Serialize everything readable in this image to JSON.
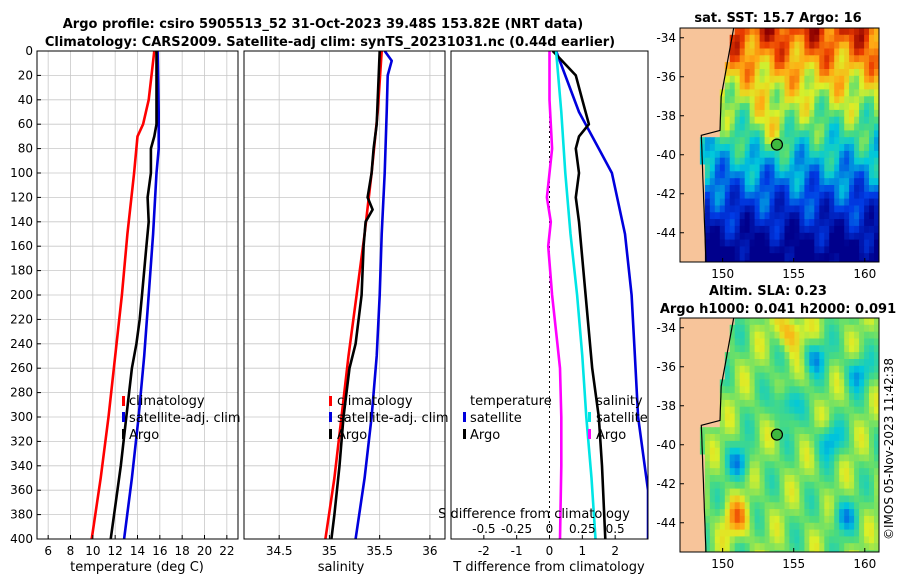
{
  "titles": {
    "line1": "Argo profile: csiro 5905513_52 31-Oct-2023 39.48S 153.82E (NRT data)",
    "line2": "Climatology: CARS2009. Satellite-adj clim: synTS_20231031.nc (0.44d earlier)"
  },
  "credit": "©IMOS 05-Nov-2023 11:42:38",
  "colors": {
    "climatology": "#ff0000",
    "satellite": "#0000dd",
    "argo": "#000000",
    "salinity_diff_sat": "#00e5e5",
    "salinity_diff_argo": "#ff00ff",
    "land": "#f7c49a"
  },
  "chart_data": [
    {
      "type": "line",
      "id": "temperature",
      "xlabel": "temperature (deg C)",
      "ylabel": "",
      "xlim": [
        5,
        23
      ],
      "ylim": [
        0,
        400
      ],
      "xticks": [
        6,
        8,
        10,
        12,
        14,
        16,
        18,
        20,
        22
      ],
      "yticks": [
        0,
        20,
        40,
        60,
        80,
        100,
        120,
        140,
        160,
        180,
        200,
        220,
        240,
        260,
        280,
        300,
        320,
        340,
        360,
        380,
        400
      ],
      "grid": true,
      "legend": [
        "climatology",
        "satellite-adj. clim",
        "Argo"
      ],
      "series": [
        {
          "name": "climatology",
          "color": "#ff0000",
          "depth": [
            0,
            40,
            60,
            70,
            100,
            150,
            200,
            250,
            300,
            350,
            400
          ],
          "values": [
            15.5,
            15.0,
            14.5,
            14.0,
            13.7,
            13.1,
            12.6,
            12.0,
            11.4,
            10.7,
            9.9
          ]
        },
        {
          "name": "satellite-adj. clim",
          "color": "#0000dd",
          "depth": [
            0,
            50,
            80,
            100,
            150,
            200,
            250,
            300,
            350,
            400
          ],
          "values": [
            15.8,
            15.9,
            15.9,
            15.7,
            15.4,
            15.0,
            14.6,
            14.1,
            13.5,
            12.8
          ]
        },
        {
          "name": "Argo",
          "color": "#000000",
          "depth": [
            0,
            60,
            70,
            80,
            100,
            120,
            140,
            160,
            180,
            200,
            220,
            240,
            260,
            300,
            340,
            380,
            400
          ],
          "values": [
            15.7,
            15.7,
            15.5,
            15.2,
            15.2,
            14.9,
            15.0,
            14.8,
            14.6,
            14.4,
            14.2,
            13.9,
            13.5,
            13.0,
            12.5,
            11.9,
            11.6
          ]
        }
      ]
    },
    {
      "type": "line",
      "id": "salinity",
      "xlabel": "salinity",
      "xlim": [
        34.15,
        36.15
      ],
      "ylim": [
        0,
        400
      ],
      "xticks": [
        34.5,
        35,
        35.5,
        36
      ],
      "grid": true,
      "legend": [
        "climatology",
        "satellite-adj. clim",
        "Argo"
      ],
      "series": [
        {
          "name": "climatology",
          "color": "#ff0000",
          "depth": [
            0,
            50,
            100,
            150,
            200,
            250,
            300,
            350,
            400
          ],
          "values": [
            35.52,
            35.48,
            35.42,
            35.35,
            35.27,
            35.19,
            35.12,
            35.05,
            34.96
          ]
        },
        {
          "name": "satellite-adj. clim",
          "color": "#0000dd",
          "depth": [
            0,
            8,
            20,
            50,
            100,
            150,
            200,
            250,
            300,
            350,
            400
          ],
          "values": [
            35.55,
            35.62,
            35.58,
            35.57,
            35.55,
            35.52,
            35.5,
            35.47,
            35.42,
            35.35,
            35.26
          ]
        },
        {
          "name": "Argo",
          "color": "#000000",
          "depth": [
            0,
            60,
            80,
            100,
            120,
            130,
            140,
            160,
            200,
            240,
            260,
            300,
            340,
            380,
            400
          ],
          "values": [
            35.5,
            35.47,
            35.44,
            35.42,
            35.38,
            35.43,
            35.36,
            35.34,
            35.32,
            35.26,
            35.2,
            35.14,
            35.1,
            35.05,
            35.02
          ]
        }
      ]
    },
    {
      "type": "line",
      "id": "difference",
      "xlabel": "T difference from climatology",
      "secondary_axis_label": "S difference from climatology",
      "xlim": [
        -3,
        3
      ],
      "ylim": [
        0,
        400
      ],
      "xticks": [
        -2,
        -1,
        0,
        1,
        2
      ],
      "secondary_ticks": [
        "-0.5",
        "-0.25",
        "0",
        "0.25",
        "0.5"
      ],
      "grid": false,
      "legend_temperature": {
        "title": "temperature",
        "items": [
          "satellite",
          "Argo"
        ]
      },
      "legend_salinity": {
        "title": "salinity",
        "items": [
          "satellite",
          "Argo"
        ]
      },
      "series": [
        {
          "name": "temperature satellite",
          "color": "#0000dd",
          "depth": [
            0,
            50,
            80,
            100,
            150,
            200,
            250,
            300,
            340,
            360,
            400
          ],
          "values": [
            0.2,
            0.9,
            1.5,
            1.9,
            2.3,
            2.5,
            2.6,
            2.7,
            2.9,
            3.0,
            3.0
          ]
        },
        {
          "name": "temperature Argo",
          "color": "#000000",
          "depth": [
            0,
            20,
            40,
            60,
            70,
            80,
            100,
            120,
            140,
            200,
            260,
            300,
            340,
            400
          ],
          "values": [
            0.1,
            0.8,
            1.0,
            1.2,
            0.9,
            0.8,
            0.9,
            0.8,
            0.9,
            1.1,
            1.3,
            1.5,
            1.6,
            1.7
          ]
        },
        {
          "name": "salinity satellite",
          "color": "#00e5e5",
          "depth": [
            0,
            50,
            100,
            150,
            200,
            250,
            300,
            350,
            400
          ],
          "values": [
            0.05,
            0.09,
            0.12,
            0.16,
            0.21,
            0.25,
            0.28,
            0.32,
            0.35
          ]
        },
        {
          "name": "salinity Argo",
          "color": "#ff00ff",
          "depth": [
            0,
            40,
            60,
            80,
            100,
            120,
            140,
            160,
            200,
            240,
            260,
            300,
            340,
            400
          ],
          "values": [
            0.0,
            0.0,
            0.01,
            0.02,
            0.0,
            -0.02,
            0.01,
            -0.01,
            0.02,
            0.06,
            0.08,
            0.09,
            0.09,
            0.08
          ]
        }
      ]
    },
    {
      "type": "heatmap",
      "id": "sst-map",
      "title": "sat. SST: 15.7 Argo: 16",
      "xlim": [
        147,
        161
      ],
      "ylim": [
        -45.5,
        -33.5
      ],
      "xticks": [
        150,
        155,
        160
      ],
      "yticks": [
        -34,
        -36,
        -38,
        -40,
        -42,
        -44
      ],
      "argo_position": {
        "lon": 153.82,
        "lat": -39.48
      }
    },
    {
      "type": "heatmap",
      "id": "sla-map",
      "title_line1": "Altim. SLA: 0.23",
      "title_line2": "Argo h1000: 0.041 h2000: 0.091",
      "xlim": [
        147,
        161
      ],
      "ylim": [
        -45.5,
        -33.5
      ],
      "xticks": [
        150,
        155,
        160
      ],
      "yticks": [
        -34,
        -36,
        -38,
        -40,
        -42,
        -44
      ],
      "argo_position": {
        "lon": 153.82,
        "lat": -39.48
      }
    }
  ]
}
